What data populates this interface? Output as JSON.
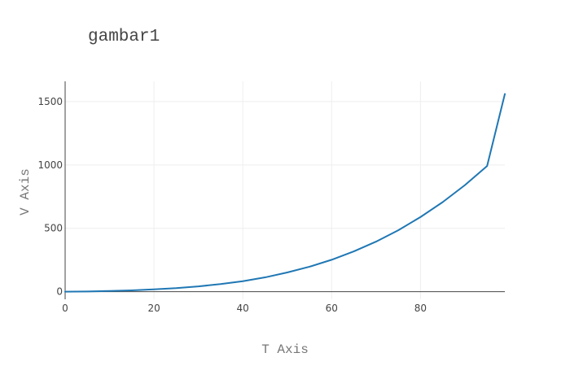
{
  "chart_data": {
    "type": "line",
    "title": "gambar1",
    "xlabel": "T Axis",
    "ylabel": "V Axis",
    "xlim": [
      0,
      99
    ],
    "ylim": [
      -60,
      1660
    ],
    "xticks": [
      0,
      20,
      40,
      60,
      80
    ],
    "yticks": [
      0,
      500,
      1000,
      1500
    ],
    "grid": true,
    "series": [
      {
        "color": "#1f77b4",
        "x": [
          0,
          5,
          10,
          15,
          20,
          25,
          30,
          35,
          40,
          45,
          50,
          55,
          60,
          65,
          70,
          75,
          80,
          85,
          90,
          95,
          99
        ],
        "y": [
          0,
          2,
          6,
          11,
          19,
          28,
          42,
          60,
          83,
          113,
          152,
          197,
          252,
          318,
          395,
          485,
          589,
          707,
          841,
          992,
          1560
        ]
      }
    ]
  }
}
